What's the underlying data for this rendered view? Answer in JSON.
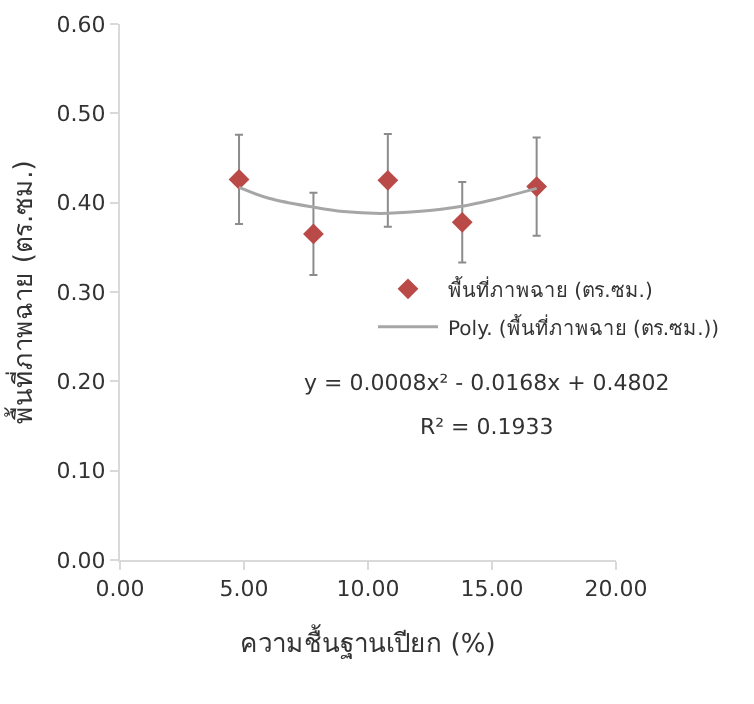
{
  "chart_data": {
    "type": "scatter",
    "xlabel": "ความชื้นฐานเปียก (%)",
    "ylabel": "พื้นที่ภาพฉาย (ตร.ซม.)",
    "xlim": [
      0,
      20
    ],
    "xticks": [
      {
        "value": 0,
        "label": "0.00"
      },
      {
        "value": 5,
        "label": "5.00"
      },
      {
        "value": 10,
        "label": "10.00"
      },
      {
        "value": 15,
        "label": "15.00"
      },
      {
        "value": 20,
        "label": "20.00"
      }
    ],
    "ylim": [
      0,
      0.6
    ],
    "yticks": [
      {
        "value": 0,
        "label": "0.00"
      },
      {
        "value": 0.1,
        "label": "0.10"
      },
      {
        "value": 0.2,
        "label": "0.20"
      },
      {
        "value": 0.3,
        "label": "0.30"
      },
      {
        "value": 0.4,
        "label": "0.40"
      },
      {
        "value": 0.5,
        "label": "0.50"
      },
      {
        "value": 0.6,
        "label": "0.60"
      }
    ],
    "grid": false,
    "legend": "right",
    "series": [
      {
        "name": "พื้นที่ภาพฉาย (ตร.ซม.)",
        "marker": "diamond",
        "color": "#b94a48",
        "x": [
          4.8,
          7.8,
          10.8,
          13.8,
          16.8
        ],
        "values": [
          0.426,
          0.365,
          0.425,
          0.378,
          0.418
        ],
        "errors": [
          0.05,
          0.046,
          0.052,
          0.045,
          0.055
        ]
      },
      {
        "type": "line",
        "marker": "none",
        "name": "Poly. (พื้นที่ภาพฉาย (ตร.ซม.))",
        "color": "#a6a6a6",
        "x": [
          4.8,
          6,
          7.8,
          9,
          10.5,
          12,
          13.8,
          15,
          16.8
        ],
        "values": [
          0.417,
          0.405,
          0.395,
          0.39,
          0.388,
          0.39,
          0.396,
          0.403,
          0.416
        ]
      }
    ],
    "annotations": [
      "y = 0.0008x² - 0.0168x + 0.4802",
      "R² = 0.1933"
    ]
  }
}
